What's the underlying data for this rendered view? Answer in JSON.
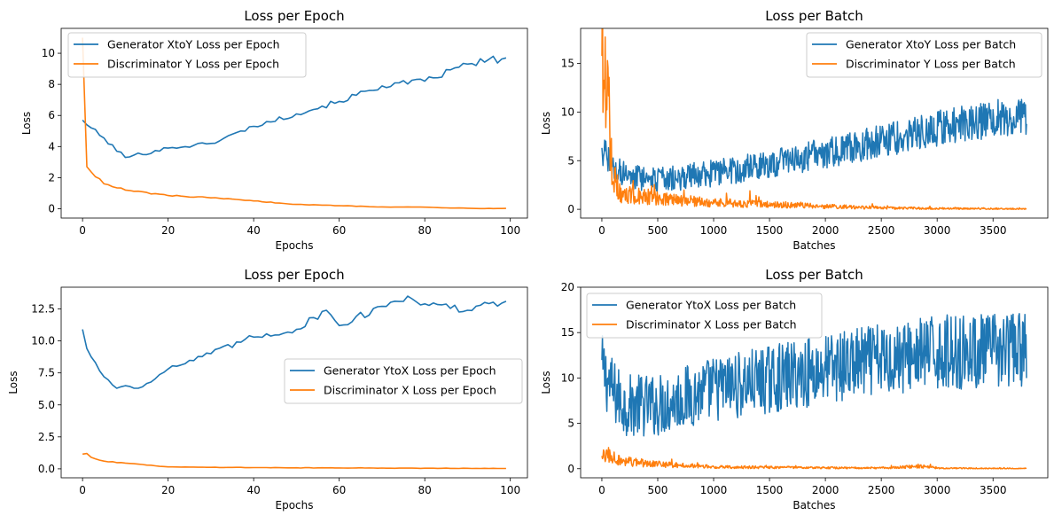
{
  "colors": {
    "blue": "#1f77b4",
    "orange": "#ff7f0e"
  },
  "chart_data": [
    {
      "type": "line",
      "title": "Loss per Epoch",
      "xlabel": "Epochs",
      "ylabel": "Loss",
      "xlim": [
        -5,
        104
      ],
      "ylim": [
        -0.6,
        11.6
      ],
      "xticks": [
        0,
        20,
        40,
        60,
        80,
        100
      ],
      "yticks": [
        0,
        2,
        4,
        6,
        8,
        10
      ],
      "legend": "top-left",
      "series": [
        {
          "name": "Generator XtoY Loss per Epoch",
          "color": "#1f77b4",
          "x": [
            0,
            10,
            20,
            30,
            40,
            50,
            60,
            70,
            80,
            90,
            99
          ],
          "y": [
            5.7,
            3.3,
            3.9,
            4.2,
            5.3,
            6.1,
            6.9,
            7.9,
            8.2,
            9.3,
            9.7
          ]
        },
        {
          "name": "Discriminator Y Loss per Epoch",
          "color": "#ff7f0e",
          "x": [
            0,
            1,
            5,
            10,
            20,
            30,
            40,
            50,
            60,
            70,
            80,
            90,
            99
          ],
          "y": [
            11.0,
            2.7,
            1.6,
            1.2,
            0.85,
            0.7,
            0.5,
            0.28,
            0.2,
            0.12,
            0.1,
            0.03,
            0.02
          ]
        }
      ]
    },
    {
      "type": "line",
      "title": "Loss per Batch",
      "xlabel": "Batches",
      "ylabel": "Loss",
      "xlim": [
        -190,
        3990
      ],
      "ylim": [
        -0.9,
        18.6
      ],
      "xticks": [
        0,
        500,
        1000,
        1500,
        2000,
        2500,
        3000,
        3500
      ],
      "yticks": [
        0,
        5,
        10,
        15
      ],
      "legend": "top-right",
      "series": [
        {
          "name": "Generator XtoY Loss per Batch",
          "color": "#1f77b4",
          "x": [
            0,
            100,
            200,
            500,
            1000,
            1500,
            2000,
            2500,
            3000,
            3500,
            3800
          ],
          "y": [
            6.0,
            4.5,
            3.5,
            3.0,
            3.7,
            4.6,
            5.8,
            7.0,
            8.3,
            9.3,
            9.6
          ]
        },
        {
          "name": "Discriminator Y Loss per Batch",
          "color": "#ff7f0e",
          "x": [
            0,
            20,
            100,
            200,
            500,
            1000,
            1500,
            2000,
            2500,
            3000,
            3500,
            3800
          ],
          "y": [
            14.0,
            17.6,
            2.0,
            1.6,
            1.1,
            0.7,
            0.5,
            0.3,
            0.15,
            0.08,
            0.05,
            0.03
          ]
        }
      ]
    },
    {
      "type": "line",
      "title": "Loss per Epoch",
      "xlabel": "Epochs",
      "ylabel": "Loss",
      "xlim": [
        -5,
        104
      ],
      "ylim": [
        -0.7,
        14.2
      ],
      "xticks": [
        0,
        20,
        40,
        60,
        80,
        100
      ],
      "yticks": [
        0.0,
        2.5,
        5.0,
        7.5,
        10.0,
        12.5
      ],
      "legend": "center-right",
      "series": [
        {
          "name": "Generator YtoX Loss per Epoch",
          "color": "#1f77b4",
          "x": [
            0,
            1,
            5,
            8,
            10,
            13,
            20,
            30,
            40,
            50,
            57,
            60,
            70,
            76,
            80,
            90,
            99
          ],
          "y": [
            10.9,
            9.4,
            7.2,
            6.3,
            6.5,
            6.3,
            7.8,
            9.0,
            10.3,
            10.9,
            12.4,
            11.2,
            12.7,
            13.5,
            12.9,
            12.4,
            13.1
          ]
        },
        {
          "name": "Discriminator X Loss per Epoch",
          "color": "#ff7f0e",
          "x": [
            0,
            1,
            2,
            5,
            10,
            20,
            30,
            40,
            50,
            60,
            70,
            80,
            90,
            99
          ],
          "y": [
            1.15,
            1.2,
            0.9,
            0.6,
            0.45,
            0.15,
            0.12,
            0.1,
            0.08,
            0.07,
            0.06,
            0.05,
            0.04,
            0.03
          ]
        }
      ]
    },
    {
      "type": "line",
      "title": "Loss per Batch",
      "xlabel": "Batches",
      "ylabel": "Loss",
      "xlim": [
        -190,
        3990
      ],
      "ylim": [
        -1.0,
        20.0
      ],
      "xticks": [
        0,
        500,
        1000,
        1500,
        2000,
        2500,
        3000,
        3500
      ],
      "yticks": [
        0,
        5,
        10,
        15,
        20
      ],
      "legend": "top-left",
      "series": [
        {
          "name": "Generator YtoX Loss per Batch",
          "color": "#1f77b4",
          "x": [
            0,
            100,
            200,
            500,
            1000,
            1500,
            2000,
            2500,
            3000,
            3500,
            3800
          ],
          "y": [
            11.0,
            8.5,
            7.0,
            7.0,
            8.8,
            9.8,
            11.0,
            12.0,
            12.8,
            13.0,
            13.2
          ]
        },
        {
          "name": "Discriminator X Loss per Batch",
          "color": "#ff7f0e",
          "x": [
            0,
            60,
            200,
            500,
            1000,
            1500,
            2000,
            2500,
            2950,
            3000,
            3500,
            3800
          ],
          "y": [
            1.2,
            1.5,
            0.8,
            0.5,
            0.2,
            0.15,
            0.1,
            0.08,
            0.3,
            0.05,
            0.03,
            0.02
          ]
        }
      ]
    }
  ]
}
